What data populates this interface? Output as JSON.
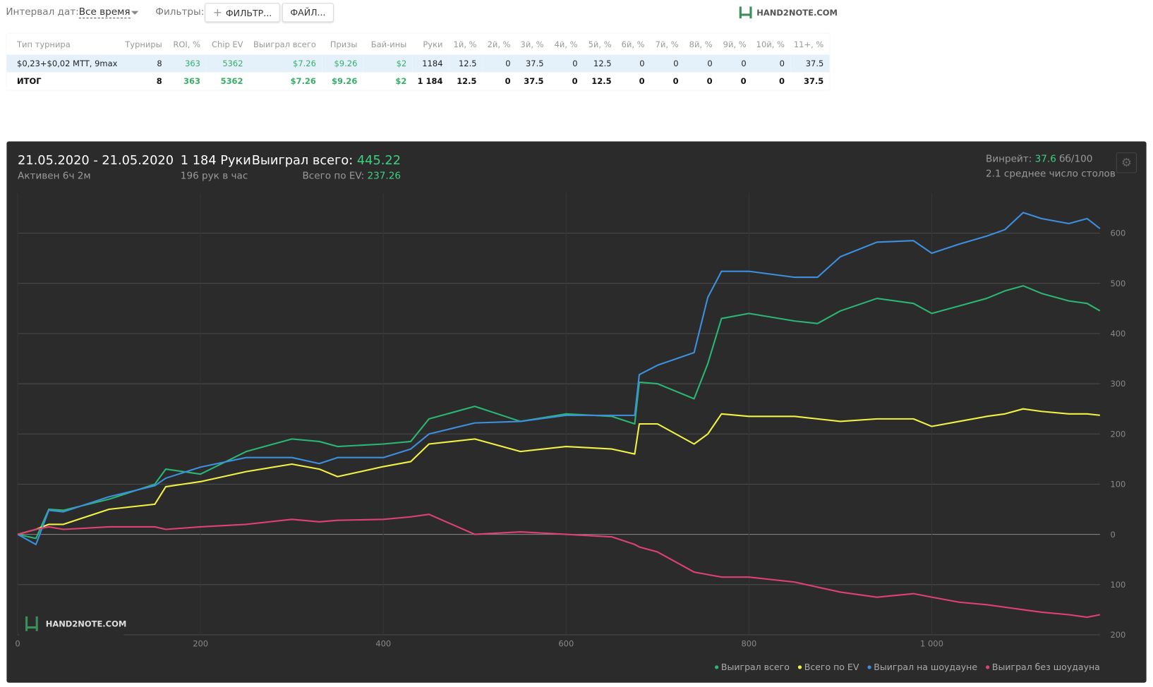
{
  "toolbar": {
    "date_label": "Интервал дат:",
    "date_value": "Все время",
    "filters_label": "Фильтры:",
    "filter_button": "ФИЛЬТР...",
    "file_button": "ФАЙЛ...",
    "logo": "HAND2NOTE.COM"
  },
  "table": {
    "headers": [
      "Тип турнира",
      "Турниры",
      "ROI, %",
      "Chip EV",
      "Выиграл всего",
      "Призы",
      "Бай-ины",
      "Руки",
      "1й, %",
      "2й, %",
      "3й, %",
      "4й, %",
      "5й, %",
      "6й, %",
      "7й, %",
      "8й, %",
      "9й, %",
      "10й, %",
      "11+, %"
    ],
    "rows": [
      [
        "$0,23+$0,02 MTT, 9max",
        "8",
        "363",
        "5362",
        "$7.26",
        "$9.26",
        "$2",
        "1184",
        "12.5",
        "0",
        "37.5",
        "0",
        "12.5",
        "0",
        "0",
        "0",
        "0",
        "0",
        "37.5"
      ],
      [
        "ИТОГ",
        "8",
        "363",
        "5362",
        "$7.26",
        "$9.26",
        "$2",
        "1 184",
        "12.5",
        "0",
        "37.5",
        "0",
        "12.5",
        "0",
        "0",
        "0",
        "0",
        "0",
        "37.5"
      ]
    ]
  },
  "summary": {
    "dates": "21.05.2020 - 21.05.2020",
    "active": "Активен 6ч 2м",
    "hands": "1 184 Руки",
    "hands_per_hour": "196 рук в час",
    "won_label": "Выиграл всего:",
    "won_value": "445.22",
    "ev_label": "Всего по EV:",
    "ev_value": "237.26",
    "winrate_label": "Винрейт:",
    "winrate_value": "37.6",
    "winrate_unit": "бб/100",
    "tables": "2.1 среднее число столов"
  },
  "chart_data": {
    "type": "line",
    "watermark": "HAND2NOTE.COM",
    "x": [
      0,
      20,
      34,
      50,
      100,
      150,
      162,
      200,
      250,
      300,
      330,
      350,
      400,
      430,
      450,
      500,
      550,
      600,
      650,
      675,
      680,
      700,
      740,
      755,
      770,
      800,
      850,
      875,
      900,
      940,
      980,
      1000,
      1030,
      1060,
      1080,
      1100,
      1120,
      1150,
      1170,
      1184
    ],
    "xlim": [
      0,
      1184
    ],
    "xticks": [
      0,
      200,
      400,
      600,
      800,
      {
        "value": 1000,
        "label": "1 000"
      }
    ],
    "ylim": [
      -200,
      680
    ],
    "yticks": [
      {
        "value": -200,
        "label": "200"
      },
      {
        "value": -100,
        "label": "100"
      },
      0,
      100,
      200,
      300,
      400,
      500,
      600
    ],
    "grid": true,
    "series": [
      {
        "name": "Выиграл всего",
        "color": "#2bb673",
        "values": [
          0,
          -8,
          50,
          48,
          70,
          100,
          130,
          120,
          165,
          190,
          185,
          175,
          180,
          185,
          230,
          255,
          225,
          240,
          235,
          220,
          303,
          300,
          270,
          340,
          430,
          440,
          425,
          420,
          445,
          470,
          460,
          440,
          455,
          470,
          485,
          495,
          480,
          465,
          460,
          445.22
        ]
      },
      {
        "name": "Всего по EV",
        "color": "#f2f244",
        "values": [
          0,
          10,
          20,
          20,
          50,
          60,
          95,
          105,
          125,
          140,
          130,
          115,
          135,
          145,
          180,
          190,
          165,
          175,
          170,
          160,
          220,
          220,
          180,
          200,
          240,
          235,
          235,
          230,
          225,
          230,
          230,
          215,
          225,
          235,
          240,
          250,
          245,
          240,
          240,
          237.26
        ]
      },
      {
        "name": "Выиграл на шоудауне",
        "color": "#3d8fe0",
        "values": [
          0,
          -20,
          48,
          45,
          75,
          97,
          112,
          134,
          153,
          153,
          141,
          153,
          153,
          170,
          200,
          222,
          225,
          237,
          237,
          237,
          318,
          337,
          362,
          472,
          524,
          524,
          512,
          512,
          553,
          582,
          585,
          560,
          578,
          594,
          607,
          641,
          629,
          619,
          629,
          609
        ]
      },
      {
        "name": "Выиграл без шоудауна",
        "color": "#e0407a",
        "values": [
          0,
          10,
          15,
          10,
          15,
          15,
          10,
          15,
          20,
          30,
          25,
          28,
          30,
          35,
          40,
          0,
          5,
          0,
          -5,
          -20,
          -25,
          -35,
          -75,
          -80,
          -85,
          -85,
          -95,
          -105,
          -115,
          -125,
          -118,
          -125,
          -135,
          -140,
          -145,
          -150,
          -155,
          -160,
          -165,
          -160
        ]
      }
    ]
  }
}
